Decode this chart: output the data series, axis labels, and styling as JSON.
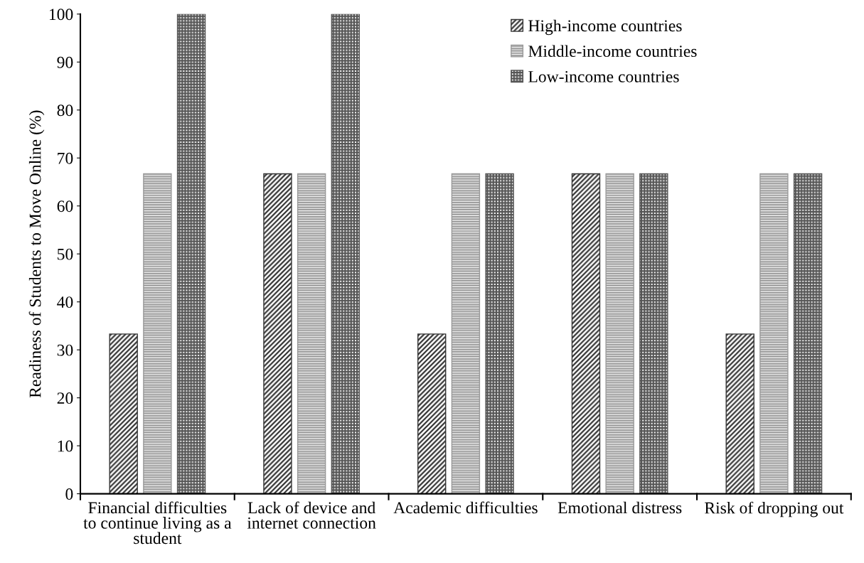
{
  "chart_data": {
    "type": "bar",
    "ylabel": "Readiness of Students to Move Online (%)",
    "categories": [
      "Financial difficulties to continue living as a student",
      "Lack of device and internet connection",
      "Academic difficulties",
      "Emotional distress",
      "Risk of dropping out"
    ],
    "series": [
      {
        "name": "High-income countries",
        "color": "#333333",
        "values": [
          33.3,
          66.7,
          33.3,
          66.7,
          33.3
        ]
      },
      {
        "name": "Middle-income countries",
        "color": "#999999",
        "values": [
          66.7,
          66.7,
          66.7,
          66.7,
          66.7
        ]
      },
      {
        "name": "Low-income countries",
        "color": "#555555",
        "values": [
          100,
          100,
          66.7,
          66.7,
          66.7
        ]
      }
    ],
    "ylim": [
      0,
      100
    ],
    "yticks": [
      0,
      10,
      20,
      30,
      40,
      50,
      60,
      70,
      80,
      90,
      100
    ],
    "grid": false,
    "legend": "top right"
  }
}
